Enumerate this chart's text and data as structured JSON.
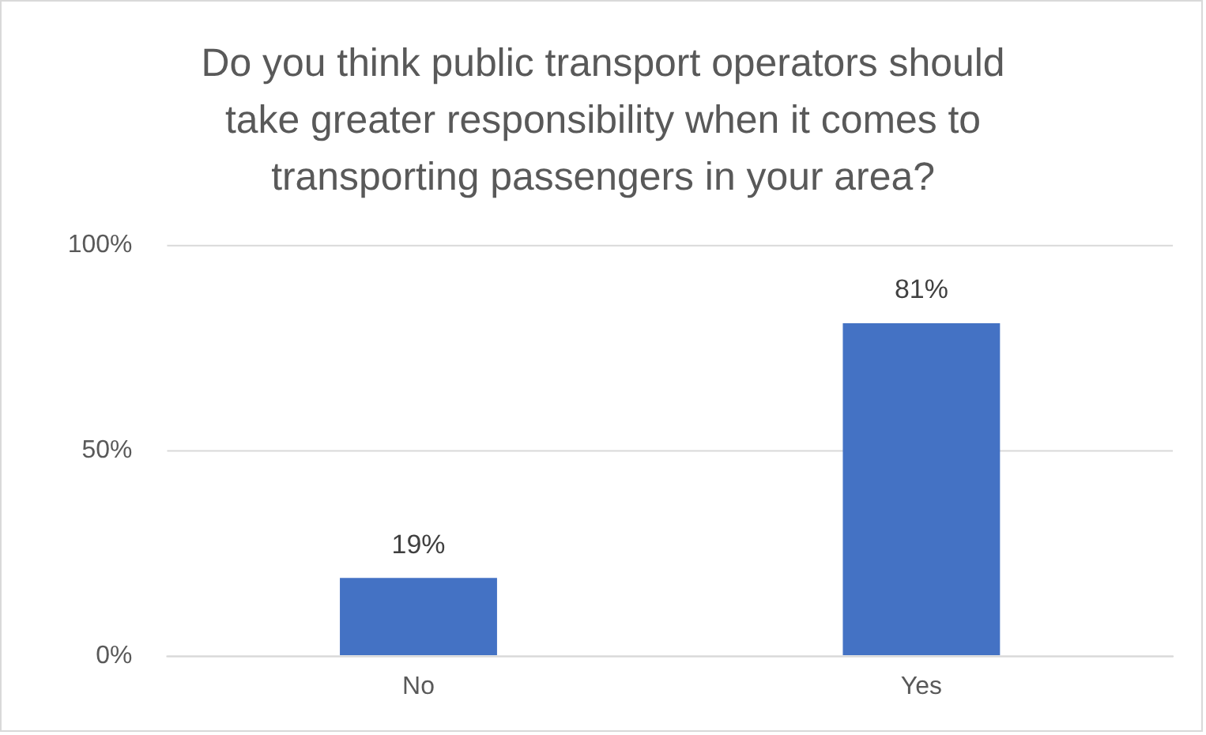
{
  "chart_data": {
    "type": "bar",
    "title": "Do you think public transport operators should take greater responsibility when it comes to transporting passengers in your area?",
    "categories": [
      "No",
      "Yes"
    ],
    "values": [
      19,
      81
    ],
    "color": "#4472c4",
    "value_labels": [
      "19%",
      "81%"
    ],
    "ylim": [
      0,
      100
    ],
    "yticks": [
      {
        "value": 0,
        "label": "0%"
      },
      {
        "value": 50,
        "label": "50%"
      },
      {
        "value": 100,
        "label": "100%"
      }
    ],
    "grid": "y"
  }
}
